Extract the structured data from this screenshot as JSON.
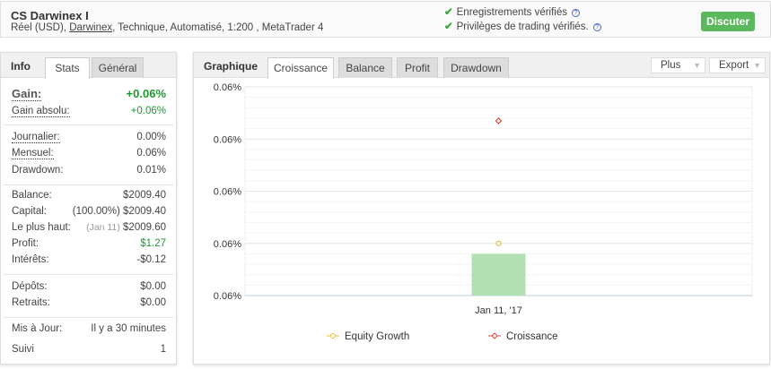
{
  "header": {
    "title": "CS Darwinex I",
    "subtitle_pre": "Réel (USD), ",
    "broker_link": "Darwinex",
    "subtitle_post": ", Technique, Automatisé, 1:200 , MetaTrader 4",
    "verifications": [
      "Enregistrements vérifiés",
      "Privilèges de trading vérifiés."
    ],
    "discuss_button": "Discuter"
  },
  "info": {
    "label": "Info",
    "tabs": [
      "Stats",
      "Général"
    ],
    "active_tab": "Stats",
    "gain_label": "Gain:",
    "gain_value": "+0.06%",
    "abs_label": "Gain absolu:",
    "abs_value": "+0.06%",
    "rows1": [
      {
        "k": "Journalier:",
        "v": "0.00%"
      },
      {
        "k": "Mensuel:",
        "v": "0.06%"
      },
      {
        "k": "Drawdown:",
        "v": "0.01%"
      }
    ],
    "rows2": [
      {
        "k": "Balance:",
        "v": "$2009.40",
        "pre": ""
      },
      {
        "k": "Capital:",
        "pre": "(100.00%)",
        "v": "$2009.40"
      },
      {
        "k": "Le plus haut:",
        "pre": "(Jan 11)",
        "v": "$2009.60"
      },
      {
        "k": "Profit:",
        "v": "$1.27",
        "pre": ""
      },
      {
        "k": "Intérêts:",
        "v": "-$0.12",
        "pre": ""
      }
    ],
    "rows3": [
      {
        "k": "Dépôts:",
        "v": "$0.00"
      },
      {
        "k": "Retraits:",
        "v": "$0.00"
      }
    ],
    "rows4": [
      {
        "k": "Mis à Jour:",
        "v": "Il y a 30 minutes"
      },
      {
        "k": "Suivi",
        "v": "1"
      }
    ]
  },
  "chart_panel": {
    "label": "Graphique",
    "tabs": [
      "Croissance",
      "Balance",
      "Profit",
      "Drawdown"
    ],
    "active_tab": "Croissance",
    "plus": "Plus",
    "export": "Export"
  },
  "chart_data": {
    "type": "bar",
    "categories": [
      "Jan 11, '17"
    ],
    "yticks": [
      0.056,
      0.058,
      0.06,
      0.062,
      0.064
    ],
    "ytick_labels": [
      "0.06%",
      "0.06%",
      "0.06%",
      "0.06%",
      "0.06%"
    ],
    "ylim": [
      0.056,
      0.064
    ],
    "bar_values": [
      0.0576
    ],
    "bar_color": "#b3e0b3",
    "series": [
      {
        "name": "Equity Growth",
        "values": [
          0.058
        ],
        "color": "#e8c02c",
        "marker": "circle"
      },
      {
        "name": "Croissance",
        "values": [
          0.0627
        ],
        "color": "#e0463c",
        "marker": "diamond"
      }
    ],
    "grid": true,
    "legend": "bottom"
  },
  "colors": {
    "green": "#1a9c2e",
    "button": "#5cb85c"
  }
}
